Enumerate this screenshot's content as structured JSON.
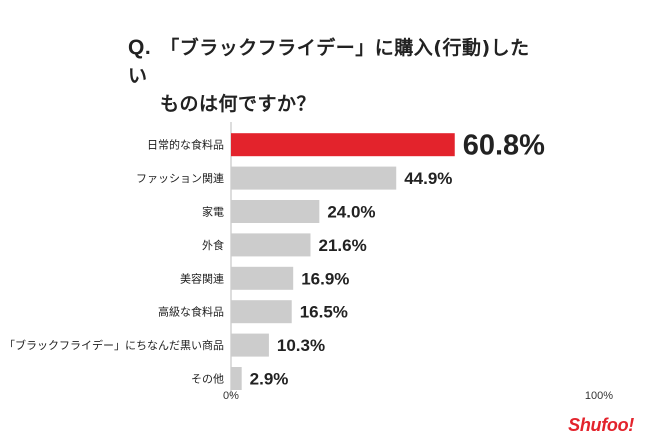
{
  "title": {
    "prefix": "Q.",
    "line1": "「ブラックフライデー」に購入(行動)したい",
    "line2": "ものは何ですか？"
  },
  "chart_data": {
    "type": "bar",
    "orientation": "horizontal",
    "categories": [
      "日常的な食料品",
      "ファッション関連",
      "家電",
      "外食",
      "美容関連",
      "高級な食料品",
      "「ブラックフライデー」にちなんだ黒い商品",
      "その他"
    ],
    "values": [
      60.8,
      44.9,
      24.0,
      21.6,
      16.9,
      16.5,
      10.3,
      2.9
    ],
    "value_labels": [
      "60.8%",
      "44.9%",
      "24.0%",
      "21.6%",
      "16.9%",
      "16.5%",
      "10.3%",
      "2.9%"
    ],
    "xlim": [
      0,
      100
    ],
    "x_tick_labels": [
      "0%",
      "100%"
    ],
    "highlight_index": 0,
    "colors": {
      "highlight": "#e3232c",
      "bar": "#cccccc",
      "axis": "#bbbbbb"
    },
    "grid": false
  },
  "logo": {
    "text": "Shufoo!"
  }
}
